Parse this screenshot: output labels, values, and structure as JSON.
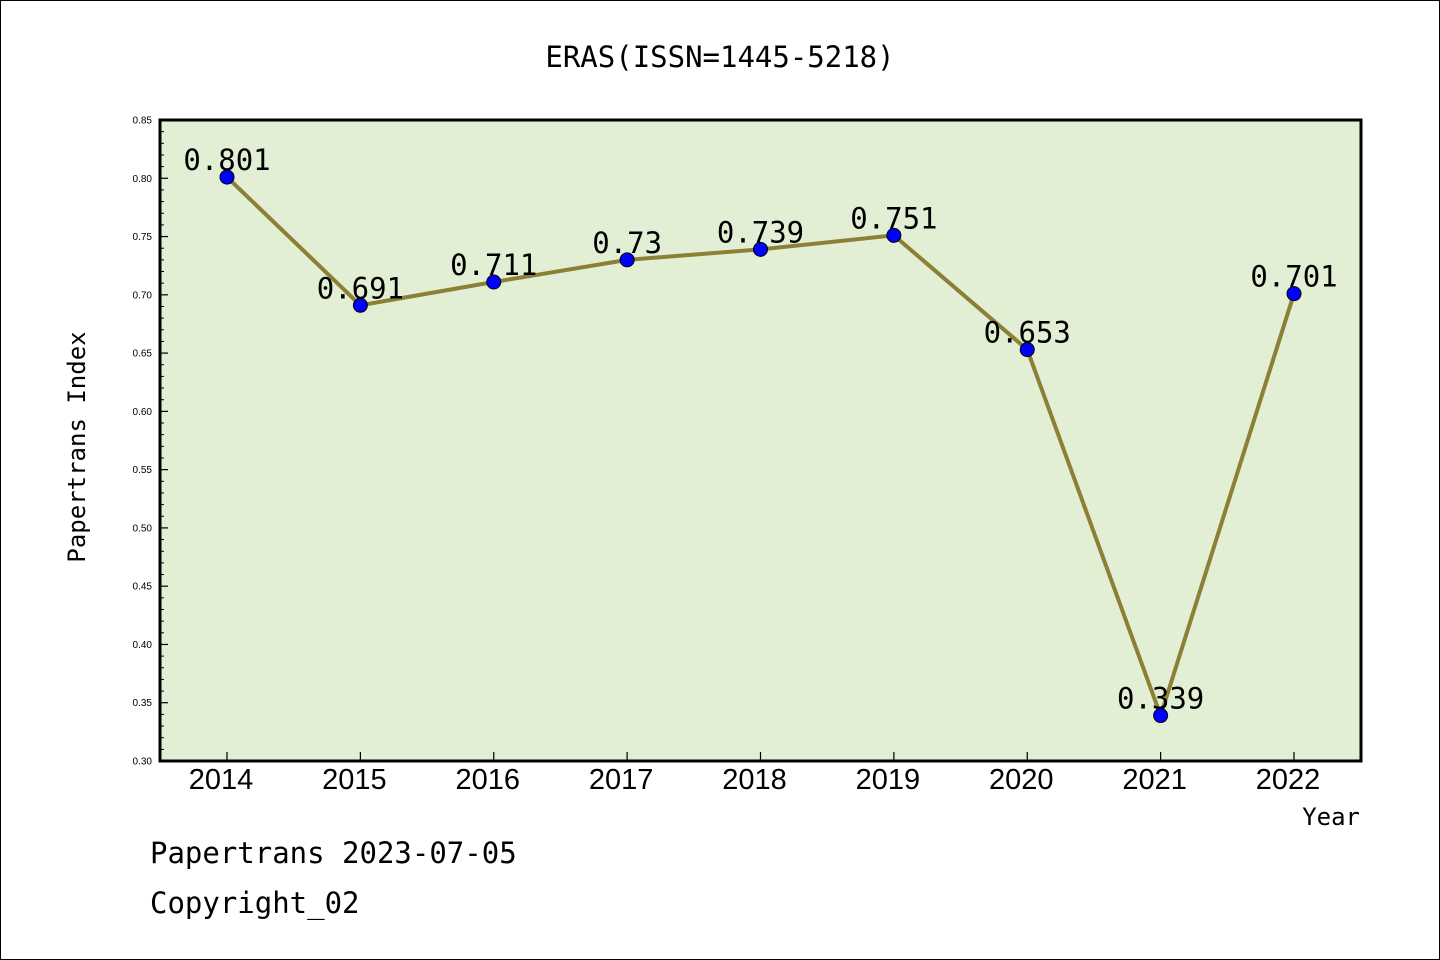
{
  "chart_data": {
    "type": "line",
    "title": "ERAS(ISSN=1445-5218)",
    "xlabel": "Year",
    "ylabel": "Papertrans Index",
    "categories": [
      "2014",
      "2015",
      "2016",
      "2017",
      "2018",
      "2019",
      "2020",
      "2021",
      "2022"
    ],
    "series": [
      {
        "values": [
          0.801,
          0.691,
          0.711,
          0.73,
          0.739,
          0.751,
          0.653,
          0.339,
          0.701
        ],
        "labels": [
          "0.801",
          "0.691",
          "0.711",
          "0.73",
          "0.739",
          "0.751",
          "0.653",
          "0.339",
          "0.701"
        ],
        "line_color": "#8b8035",
        "marker_color": "#0000ff"
      }
    ],
    "ylim": [
      0.3,
      0.85
    ],
    "yticks": [
      "0.30",
      "0.35",
      "0.40",
      "0.45",
      "0.50",
      "0.55",
      "0.60",
      "0.65",
      "0.70",
      "0.75",
      "0.80",
      "0.85"
    ],
    "plot_background": "#e2efd5",
    "grid": false,
    "legend": "none"
  },
  "footer": {
    "line1": "Papertrans 2023-07-05",
    "line2": "Copyright_02"
  }
}
